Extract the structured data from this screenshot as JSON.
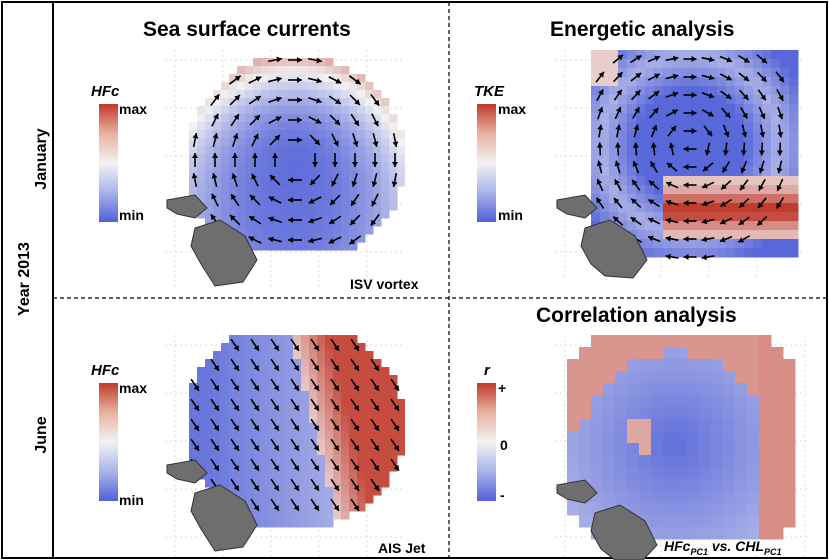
{
  "figure": {
    "row_group_label": "Year 2013",
    "rows": [
      "January",
      "June"
    ],
    "columns": [
      "Sea surface currents",
      "Energetic analysis",
      "Correlation analysis"
    ]
  },
  "panels": {
    "top_left": {
      "legend_title": "HFc",
      "legend_max": "max",
      "legend_min": "min",
      "corner_label": "ISV vortex"
    },
    "top_right": {
      "legend_title": "TKE",
      "legend_max": "max",
      "legend_min": "min"
    },
    "bottom_left": {
      "legend_title": "HFc",
      "legend_max": "max",
      "legend_min": "min",
      "corner_label": "AIS Jet"
    },
    "bottom_right": {
      "legend_title": "r",
      "legend_max": "+",
      "legend_mid": "0",
      "legend_min": "-",
      "corner_label_a": "HFc",
      "corner_label_a_sub": "PC1",
      "corner_label_mid": " vs. ",
      "corner_label_b": "CHL",
      "corner_label_b_sub": "PC1"
    }
  },
  "colors": {
    "high": "#c0392b",
    "mid": "#f2f2f2",
    "low": "#5060d8",
    "land": "#6e6e6e",
    "frame": "#000000"
  },
  "icons": {
    "arrows": "current-arrow-glyphs",
    "land": "island-shape"
  }
}
